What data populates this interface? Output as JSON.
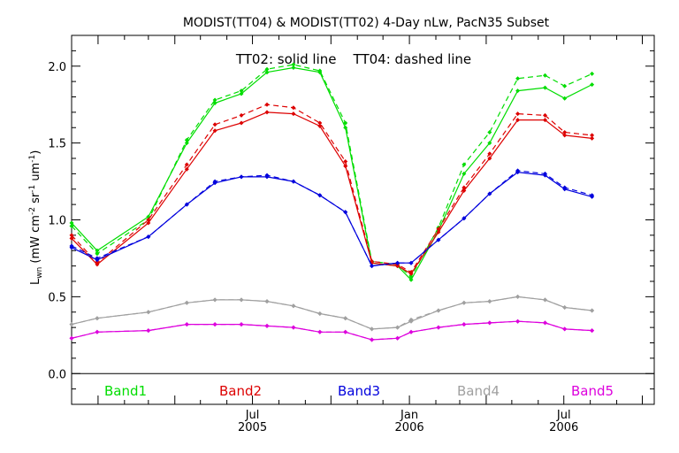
{
  "chart_data": {
    "type": "line",
    "title": "MODIST(TT04) & MODIST(TT02) 4-Day nLw, PacN35 Subset",
    "annotation": "TT02: solid line    TT04: dashed line",
    "ylabel": "L_wn (mW cm^-2 sr^-1 um^-1)",
    "ylabel_main": "L",
    "ylabel_sub": "wn",
    "ylabel_units": " (mW cm",
    "ylabel_exp1": "-2",
    "ylabel_mid": " sr",
    "ylabel_exp2": "-1",
    "ylabel_mid2": " um",
    "ylabel_exp3": "-1",
    "ylabel_end": ")",
    "ylim": [
      -0.2,
      2.2
    ],
    "yticks": [
      0.0,
      0.5,
      1.0,
      1.5,
      2.0
    ],
    "ytick_labels": [
      "0.0",
      "0.5",
      "1.0",
      "1.5",
      "2.0"
    ],
    "xlim": [
      "2004-12-01",
      "2006-10-15"
    ],
    "xticks": [
      {
        "date": "2005-07-01",
        "month": "Jul",
        "year": "2005"
      },
      {
        "date": "2006-01-01",
        "month": "Jan",
        "year": "2006"
      },
      {
        "date": "2006-07-01",
        "month": "Jul",
        "year": "2006"
      }
    ],
    "x": [
      "2004-12-01",
      "2004-12-31",
      "2005-03-01",
      "2005-04-15",
      "2005-05-18",
      "2005-06-18",
      "2005-07-18",
      "2005-08-18",
      "2005-09-18",
      "2005-10-18",
      "2005-11-18",
      "2005-12-18",
      "2006-01-03",
      "2006-02-04",
      "2006-03-06",
      "2006-04-05",
      "2006-05-08",
      "2006-06-09",
      "2006-07-02",
      "2006-08-03",
      "2006-09-04",
      "2006-10-05"
    ],
    "series": [
      {
        "name": "Band1",
        "color": "#00dd00",
        "line": "solid",
        "values": [
          0.98,
          0.8,
          1.02,
          1.5,
          1.76,
          1.82,
          1.96,
          1.99,
          1.96,
          1.6,
          0.72,
          0.7,
          0.61,
          0.93,
          1.3,
          1.5,
          1.84,
          1.86,
          1.79,
          1.88,
          null,
          null
        ]
      },
      {
        "name": "Band1",
        "color": "#00dd00",
        "line": "dashed",
        "values": [
          0.96,
          0.78,
          1.0,
          1.52,
          1.78,
          1.84,
          1.98,
          2.01,
          1.97,
          1.63,
          0.73,
          0.71,
          0.63,
          0.95,
          1.36,
          1.57,
          1.92,
          1.94,
          1.87,
          1.95,
          null,
          null
        ]
      },
      {
        "name": "Band2",
        "color": "#dd0000",
        "line": "solid",
        "values": [
          0.88,
          0.71,
          0.98,
          1.33,
          1.58,
          1.63,
          1.7,
          1.69,
          1.61,
          1.35,
          0.72,
          0.7,
          0.65,
          0.92,
          1.19,
          1.4,
          1.65,
          1.65,
          1.55,
          1.53,
          null,
          null
        ]
      },
      {
        "name": "Band2",
        "color": "#dd0000",
        "line": "dashed",
        "values": [
          0.9,
          0.72,
          1.0,
          1.36,
          1.62,
          1.68,
          1.75,
          1.73,
          1.63,
          1.38,
          0.73,
          0.71,
          0.66,
          0.94,
          1.21,
          1.43,
          1.69,
          1.68,
          1.57,
          1.55,
          null,
          null
        ]
      },
      {
        "name": "Band3",
        "color": "#0000dd",
        "line": "solid",
        "values": [
          0.82,
          0.74,
          0.89,
          1.1,
          1.24,
          1.28,
          1.28,
          1.25,
          1.16,
          1.05,
          0.7,
          0.72,
          0.72,
          0.87,
          1.01,
          1.17,
          1.31,
          1.29,
          1.2,
          1.15,
          null,
          null
        ]
      },
      {
        "name": "Band3",
        "color": "#0000dd",
        "line": "dashed",
        "values": [
          0.83,
          0.75,
          0.89,
          1.1,
          1.25,
          1.28,
          1.29,
          1.25,
          1.16,
          1.05,
          0.7,
          0.72,
          0.72,
          0.87,
          1.01,
          1.17,
          1.32,
          1.3,
          1.21,
          1.16,
          null,
          null
        ]
      },
      {
        "name": "Band4",
        "color": "#a0a0a0",
        "line": "solid",
        "values": [
          0.32,
          0.36,
          0.4,
          0.46,
          0.48,
          0.48,
          0.47,
          0.44,
          0.39,
          0.36,
          0.29,
          0.3,
          0.34,
          0.41,
          0.46,
          0.47,
          0.5,
          0.48,
          0.43,
          0.41,
          null,
          null
        ]
      },
      {
        "name": "Band4",
        "color": "#a0a0a0",
        "line": "dashed",
        "values": [
          0.32,
          0.36,
          0.4,
          0.46,
          0.48,
          0.48,
          0.47,
          0.44,
          0.39,
          0.36,
          0.29,
          0.3,
          0.35,
          0.41,
          0.46,
          0.47,
          0.5,
          0.48,
          0.43,
          0.41,
          null,
          null
        ]
      },
      {
        "name": "Band5",
        "color": "#dd00dd",
        "line": "solid",
        "values": [
          0.23,
          0.27,
          0.28,
          0.32,
          0.32,
          0.32,
          0.31,
          0.3,
          0.27,
          0.27,
          0.22,
          0.23,
          0.27,
          0.3,
          0.32,
          0.33,
          0.34,
          0.33,
          0.29,
          0.28,
          null,
          null
        ]
      },
      {
        "name": "Band5",
        "color": "#dd00dd",
        "line": "dashed",
        "values": [
          0.23,
          0.27,
          0.28,
          0.32,
          0.32,
          0.32,
          0.31,
          0.3,
          0.27,
          0.27,
          0.22,
          0.23,
          0.27,
          0.3,
          0.32,
          0.33,
          0.34,
          0.33,
          0.29,
          0.28,
          null,
          null
        ]
      }
    ],
    "legend": [
      {
        "label": "Band1",
        "color": "#00dd00"
      },
      {
        "label": "Band2",
        "color": "#dd0000"
      },
      {
        "label": "Band3",
        "color": "#0000dd"
      },
      {
        "label": "Band4",
        "color": "#a0a0a0"
      },
      {
        "label": "Band5",
        "color": "#dd00dd"
      }
    ],
    "legend_position": "bottom-inside",
    "grid": false
  }
}
